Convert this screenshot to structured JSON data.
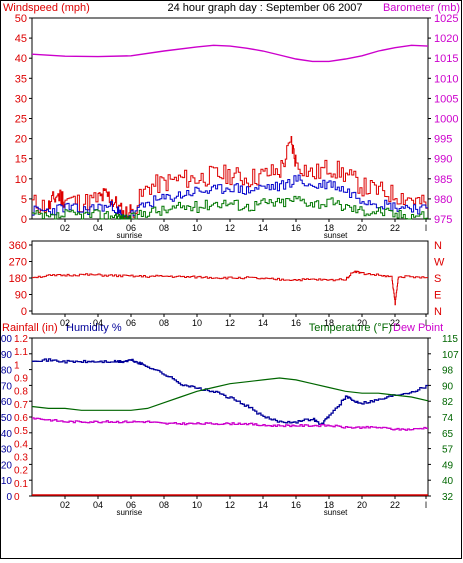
{
  "header": {
    "title": "24 hour graph day : September 06 2007",
    "left_label": "Windspeed (mph)",
    "right_label": "Barometer (mb)"
  },
  "colors": {
    "wind_main": "#dd0000",
    "wind_avg": "#0000cc",
    "wind_low": "#007700",
    "barometer": "#cc00cc",
    "direction": "#dd0000",
    "humidity": "#000099",
    "temperature": "#006600",
    "dewpoint": "#cc00cc",
    "rainfall": "#dd0000"
  },
  "chart_data": [
    {
      "type": "line",
      "name": "wind-barometer",
      "x_ticks": [
        "02",
        "04",
        "06",
        "08",
        "10",
        "12",
        "14",
        "16",
        "18",
        "20",
        "22",
        "l"
      ],
      "sun_labels": {
        "sunrise": "sunrise",
        "sunset": "sunset"
      },
      "y_left": {
        "label": "Windspeed (mph)",
        "ylim": [
          0,
          50
        ],
        "ticks": [
          "0",
          "5",
          "10",
          "15",
          "20",
          "25",
          "30",
          "35",
          "40",
          "45",
          "50"
        ]
      },
      "y_right": {
        "label": "Barometer (mb)",
        "ylim": [
          975,
          1025
        ],
        "ticks": [
          "975",
          "980",
          "985",
          "990",
          "995",
          "1000",
          "1005",
          "1010",
          "1015",
          "1020",
          "1025"
        ]
      },
      "series": [
        {
          "name": "Windspeed (mph)",
          "x": [
            0,
            1,
            1.5,
            2,
            3,
            4,
            4.5,
            5,
            5.5,
            6,
            7,
            8,
            9,
            10,
            11,
            12,
            13,
            14,
            15,
            15.7,
            16,
            17,
            18,
            19,
            20,
            21,
            22,
            23,
            24
          ],
          "values": [
            4,
            3,
            6,
            5,
            4,
            5,
            6,
            4,
            1,
            2,
            8,
            9,
            10,
            10,
            11,
            11,
            10,
            11,
            12,
            19,
            14,
            11,
            13,
            11,
            8,
            7,
            6,
            5,
            3
          ]
        },
        {
          "name": "Wind average",
          "x": [
            0,
            1,
            2,
            3,
            4,
            5,
            5.5,
            6,
            7,
            8,
            9,
            10,
            11,
            12,
            13,
            14,
            15,
            16,
            17,
            18,
            19,
            20,
            21,
            22,
            23,
            24
          ],
          "values": [
            2,
            2,
            3,
            2,
            3,
            3,
            0,
            1,
            4,
            5,
            6,
            7,
            7,
            8,
            7,
            8,
            8,
            10,
            8,
            9,
            7,
            5,
            4,
            3,
            3,
            2
          ]
        },
        {
          "name": "Wind low",
          "x": [
            0,
            1,
            2,
            3,
            4,
            5,
            5.5,
            6,
            7,
            8,
            9,
            10,
            11,
            12,
            13,
            14,
            15,
            16,
            17,
            18,
            19,
            20,
            21,
            22,
            23,
            24
          ],
          "values": [
            1,
            0,
            1,
            1,
            1,
            1,
            0,
            0,
            2,
            2,
            3,
            3,
            4,
            4,
            3,
            4,
            4,
            5,
            4,
            4,
            3,
            2,
            2,
            1,
            1,
            1
          ]
        },
        {
          "name": "Barometer (mb)",
          "x": [
            0,
            2,
            4,
            6,
            8,
            10,
            11,
            12,
            13,
            14,
            15,
            16,
            17,
            18,
            19,
            20,
            21,
            22,
            23,
            24
          ],
          "values": [
            1016,
            1015.5,
            1015.4,
            1015.6,
            1016.8,
            1017.8,
            1018.2,
            1018,
            1017.5,
            1016.8,
            1015.8,
            1014.8,
            1014.2,
            1014.2,
            1014.8,
            1015.6,
            1016.8,
            1017.6,
            1018.2,
            1018
          ]
        }
      ]
    },
    {
      "type": "line",
      "name": "wind-direction",
      "y_left": {
        "ylim": [
          0,
          360
        ],
        "ticks": [
          "0",
          "90",
          "180",
          "270",
          "360"
        ]
      },
      "y_right": {
        "ticks": [
          "N",
          "W",
          "S",
          "E",
          "N"
        ]
      },
      "series": [
        {
          "name": "Wind direction",
          "x": [
            0,
            1,
            2,
            3,
            4,
            5,
            6,
            7,
            8,
            9,
            10,
            11,
            12,
            13,
            14,
            15,
            16,
            17,
            18,
            19,
            19.5,
            20,
            21,
            21.8,
            22,
            22.2,
            23,
            24
          ],
          "values": [
            185,
            192,
            195,
            198,
            196,
            192,
            190,
            188,
            190,
            186,
            185,
            182,
            180,
            182,
            175,
            172,
            170,
            172,
            168,
            175,
            218,
            205,
            195,
            185,
            40,
            190,
            185,
            180
          ]
        }
      ]
    },
    {
      "type": "line",
      "name": "humidity-temperature",
      "y_left_rain": {
        "label": "Rainfall (in)",
        "ylim": [
          0,
          1.2
        ],
        "ticks": [
          "0",
          "0.1",
          "0.2",
          "0.3",
          "0.4",
          "0.5",
          "0.6",
          "0.7",
          "0.8",
          "0.9",
          "1",
          "1.1",
          "1.2"
        ]
      },
      "y_left_humidity": {
        "label": "Humidity %",
        "ylim": [
          0,
          100
        ],
        "ticks": [
          "0",
          "10",
          "20",
          "30",
          "40",
          "50",
          "60",
          "70",
          "80",
          "90",
          "100"
        ]
      },
      "y_right": {
        "label": "Temperature (°F)",
        "label2": "Dew Point",
        "ylim": [
          32,
          115
        ],
        "ticks": [
          "32",
          "40",
          "49",
          "57",
          "65",
          "74",
          "82",
          "90",
          "98",
          "107",
          "115"
        ]
      },
      "series": [
        {
          "name": "Humidity %",
          "x": [
            0,
            1,
            2,
            3,
            4,
            5,
            5.5,
            6,
            6.5,
            7,
            8,
            9,
            10,
            11,
            12,
            13,
            14,
            15,
            16,
            17,
            17.5,
            18,
            19,
            19.5,
            20,
            21,
            22,
            23,
            24
          ],
          "values": [
            86,
            86,
            85,
            85,
            85,
            85,
            85,
            86,
            84,
            82,
            77,
            71,
            68,
            66,
            62,
            57,
            50,
            47,
            47,
            49,
            45,
            51,
            63,
            60,
            59,
            61,
            64,
            66,
            70
          ]
        },
        {
          "name": "Temperature (°F)",
          "x": [
            0,
            1,
            2,
            3,
            4,
            5,
            6,
            7,
            8,
            9,
            10,
            11,
            12,
            13,
            14,
            15,
            16,
            17,
            18,
            19,
            20,
            21,
            22,
            23,
            24
          ],
          "values": [
            79,
            78,
            78,
            77,
            77,
            77,
            77,
            78,
            81,
            84,
            87,
            89,
            91,
            92,
            93,
            94,
            93,
            91,
            89,
            87,
            86,
            86,
            85,
            84,
            82
          ]
        },
        {
          "name": "Dew Point",
          "x": [
            0,
            1,
            2,
            3,
            4,
            5,
            6,
            7,
            8,
            9,
            10,
            11,
            12,
            13,
            14,
            15,
            16,
            17,
            18,
            19,
            20,
            21,
            22,
            23,
            24
          ],
          "values": [
            73,
            72,
            71,
            71,
            71,
            71,
            71,
            71,
            70,
            70,
            70,
            70,
            70,
            70,
            69,
            69,
            69,
            69,
            69,
            68,
            68,
            68,
            67,
            67,
            68
          ]
        },
        {
          "name": "Rainfall (in)",
          "x": [
            0,
            24
          ],
          "values": [
            0,
            0
          ]
        }
      ]
    }
  ]
}
